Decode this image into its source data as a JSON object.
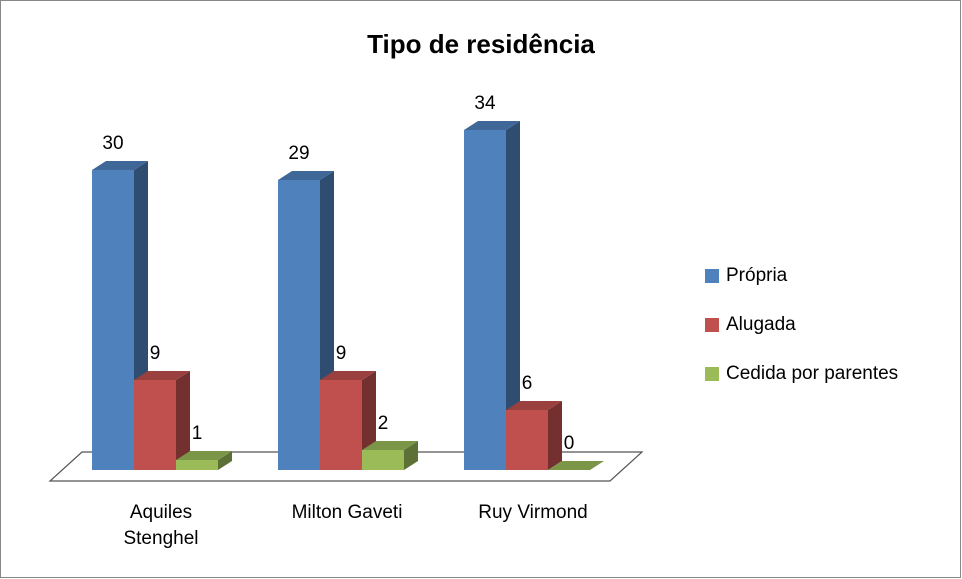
{
  "chart_data": {
    "type": "bar3d",
    "title": "Tipo de residência",
    "categories": [
      "Aquiles Stenghel",
      "Milton Gaveti",
      "Ruy Virmond"
    ],
    "series": [
      {
        "name": "Própria",
        "color": "#4f81bd",
        "values": [
          30,
          29,
          34
        ]
      },
      {
        "name": "Alugada",
        "color": "#c0504d",
        "values": [
          9,
          9,
          6
        ]
      },
      {
        "name": "Cedida por parentes",
        "color": "#9bbb59",
        "values": [
          1,
          2,
          0
        ]
      }
    ],
    "legend": "right"
  }
}
